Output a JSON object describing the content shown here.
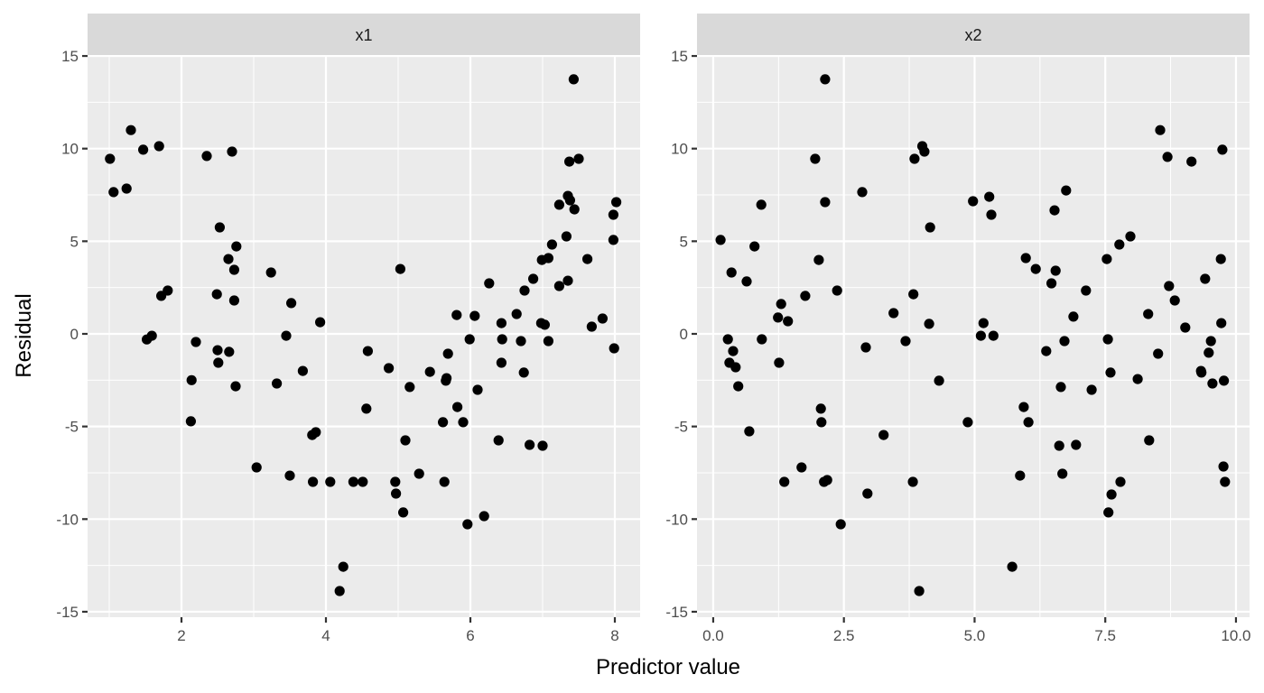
{
  "chart_data": {
    "type": "scatter",
    "title": "",
    "xlabel": "Predictor value",
    "ylabel": "Residual",
    "facets": [
      {
        "name": "x1",
        "xlim": [
          0.7,
          8.35
        ],
        "ylim": [
          -15.4,
          15.0
        ],
        "x_ticks": [
          2,
          4,
          6,
          8
        ],
        "x_tick_labels": [
          "2",
          "4",
          "6",
          "8"
        ],
        "x_minor": [
          1,
          3,
          5,
          7
        ],
        "y_ticks": [
          15,
          10,
          5,
          0,
          -5,
          -10,
          -15
        ],
        "y_tick_labels": [
          "15",
          "10",
          "5",
          "0",
          "-5",
          "-10",
          "-15"
        ],
        "points": [
          [
            1.01,
            9.45
          ],
          [
            1.06,
            7.65
          ],
          [
            1.24,
            7.84
          ],
          [
            1.3,
            11.0
          ],
          [
            1.47,
            9.94
          ],
          [
            1.69,
            10.13
          ],
          [
            1.52,
            -0.3
          ],
          [
            1.59,
            -0.1
          ],
          [
            1.72,
            2.05
          ],
          [
            1.81,
            2.34
          ],
          [
            2.14,
            -2.5
          ],
          [
            2.13,
            -4.72
          ],
          [
            2.2,
            -0.44
          ],
          [
            2.35,
            9.6
          ],
          [
            2.53,
            5.75
          ],
          [
            2.5,
            -0.88
          ],
          [
            2.51,
            -1.56
          ],
          [
            2.66,
            -0.97
          ],
          [
            2.65,
            4.04
          ],
          [
            2.7,
            9.84
          ],
          [
            2.73,
            3.46
          ],
          [
            2.73,
            1.8
          ],
          [
            2.75,
            -2.83
          ],
          [
            2.76,
            4.72
          ],
          [
            2.49,
            2.14
          ],
          [
            3.04,
            -7.21
          ],
          [
            3.24,
            3.31
          ],
          [
            3.32,
            -2.68
          ],
          [
            3.45,
            -0.1
          ],
          [
            3.52,
            1.66
          ],
          [
            3.5,
            -7.65
          ],
          [
            3.68,
            -2.0
          ],
          [
            3.82,
            -7.99
          ],
          [
            3.81,
            -5.46
          ],
          [
            3.86,
            -5.31
          ],
          [
            3.92,
            0.63
          ],
          [
            4.06,
            -7.99
          ],
          [
            4.19,
            -13.88
          ],
          [
            4.24,
            -12.57
          ],
          [
            4.38,
            -7.99
          ],
          [
            4.51,
            -7.99
          ],
          [
            4.56,
            -4.04
          ],
          [
            4.58,
            -0.93
          ],
          [
            4.87,
            -1.85
          ],
          [
            4.96,
            -7.99
          ],
          [
            4.97,
            -8.62
          ],
          [
            5.03,
            3.5
          ],
          [
            5.07,
            -9.64
          ],
          [
            5.1,
            -5.75
          ],
          [
            5.16,
            -2.87
          ],
          [
            5.29,
            -7.55
          ],
          [
            5.44,
            -2.05
          ],
          [
            5.62,
            -4.77
          ],
          [
            5.64,
            -7.99
          ],
          [
            5.66,
            -2.53
          ],
          [
            5.67,
            -2.39
          ],
          [
            5.69,
            -1.07
          ],
          [
            5.81,
            1.02
          ],
          [
            5.82,
            -3.95
          ],
          [
            5.9,
            -4.77
          ],
          [
            5.96,
            -10.28
          ],
          [
            5.99,
            -0.29
          ],
          [
            6.06,
            0.97
          ],
          [
            6.1,
            -3.02
          ],
          [
            6.19,
            -9.84
          ],
          [
            6.26,
            2.73
          ],
          [
            6.39,
            -5.75
          ],
          [
            6.43,
            -1.56
          ],
          [
            6.43,
            0.58
          ],
          [
            6.44,
            -0.29
          ],
          [
            6.64,
            1.07
          ],
          [
            6.7,
            -0.39
          ],
          [
            6.74,
            -2.09
          ],
          [
            6.75,
            2.34
          ],
          [
            6.82,
            -5.99
          ],
          [
            6.87,
            2.97
          ],
          [
            6.98,
            0.58
          ],
          [
            6.99,
            3.99
          ],
          [
            7.0,
            -6.04
          ],
          [
            7.03,
            0.49
          ],
          [
            7.08,
            -0.39
          ],
          [
            7.08,
            4.09
          ],
          [
            7.13,
            4.82
          ],
          [
            7.23,
            2.58
          ],
          [
            7.23,
            6.97
          ],
          [
            7.33,
            5.26
          ],
          [
            7.35,
            2.87
          ],
          [
            7.35,
            7.45
          ],
          [
            7.37,
            9.3
          ],
          [
            7.38,
            7.21
          ],
          [
            7.43,
            13.74
          ],
          [
            7.44,
            6.72
          ],
          [
            7.5,
            9.45
          ],
          [
            7.62,
            4.04
          ],
          [
            7.68,
            0.39
          ],
          [
            7.83,
            0.83
          ],
          [
            7.98,
            6.43
          ],
          [
            7.98,
            5.07
          ],
          [
            7.99,
            -0.78
          ],
          [
            8.02,
            7.11
          ]
        ]
      },
      {
        "name": "x2",
        "xlim": [
          -0.31,
          10.26
        ],
        "ylim": [
          -15.4,
          15.0
        ],
        "x_ticks": [
          0.0,
          2.5,
          5.0,
          7.5,
          10.0
        ],
        "x_tick_labels": [
          "0.0",
          "2.5",
          "5.0",
          "7.5",
          "10.0"
        ],
        "x_minor": [
          1.25,
          3.75,
          6.25,
          8.75
        ],
        "y_ticks": [
          15,
          10,
          5,
          0,
          -5,
          -10,
          -15
        ],
        "y_tick_labels": [
          "15",
          "10",
          "5",
          "0",
          "-5",
          "-10",
          "-15"
        ],
        "points": [
          [
            0.14,
            5.07
          ],
          [
            0.28,
            -0.29
          ],
          [
            0.31,
            -1.56
          ],
          [
            0.35,
            3.31
          ],
          [
            0.38,
            -0.93
          ],
          [
            0.43,
            -1.8
          ],
          [
            0.48,
            -2.83
          ],
          [
            0.64,
            2.83
          ],
          [
            0.69,
            -5.26
          ],
          [
            0.79,
            4.72
          ],
          [
            0.92,
            6.97
          ],
          [
            0.93,
            -0.29
          ],
          [
            1.24,
            0.88
          ],
          [
            1.26,
            -1.56
          ],
          [
            1.3,
            1.61
          ],
          [
            1.36,
            -7.99
          ],
          [
            1.43,
            0.68
          ],
          [
            1.69,
            -7.21
          ],
          [
            1.76,
            2.05
          ],
          [
            1.95,
            9.45
          ],
          [
            2.02,
            3.99
          ],
          [
            2.06,
            -4.04
          ],
          [
            2.07,
            -4.77
          ],
          [
            2.12,
            -7.99
          ],
          [
            2.14,
            7.11
          ],
          [
            2.14,
            13.74
          ],
          [
            2.18,
            -7.89
          ],
          [
            2.37,
            2.34
          ],
          [
            2.44,
            -10.28
          ],
          [
            2.85,
            7.65
          ],
          [
            2.92,
            -0.73
          ],
          [
            2.95,
            -8.62
          ],
          [
            3.26,
            -5.46
          ],
          [
            3.45,
            1.12
          ],
          [
            3.68,
            -0.39
          ],
          [
            3.82,
            -7.99
          ],
          [
            3.83,
            2.14
          ],
          [
            3.85,
            9.45
          ],
          [
            3.94,
            -13.88
          ],
          [
            4.0,
            10.13
          ],
          [
            4.04,
            9.84
          ],
          [
            4.13,
            0.54
          ],
          [
            4.15,
            5.75
          ],
          [
            4.32,
            -2.53
          ],
          [
            4.87,
            -4.77
          ],
          [
            4.97,
            7.16
          ],
          [
            5.12,
            -0.1
          ],
          [
            5.17,
            0.58
          ],
          [
            5.28,
            7.4
          ],
          [
            5.32,
            6.43
          ],
          [
            5.36,
            -0.1
          ],
          [
            5.72,
            -12.57
          ],
          [
            5.87,
            -7.65
          ],
          [
            5.94,
            -3.95
          ],
          [
            5.98,
            4.09
          ],
          [
            6.03,
            -4.77
          ],
          [
            6.17,
            3.5
          ],
          [
            6.37,
            -0.93
          ],
          [
            6.47,
            2.73
          ],
          [
            6.53,
            6.67
          ],
          [
            6.55,
            3.41
          ],
          [
            6.62,
            -6.04
          ],
          [
            6.65,
            -2.87
          ],
          [
            6.68,
            -7.55
          ],
          [
            6.72,
            -0.39
          ],
          [
            6.75,
            7.74
          ],
          [
            6.89,
            0.93
          ],
          [
            6.94,
            -5.99
          ],
          [
            7.13,
            2.34
          ],
          [
            7.24,
            -3.02
          ],
          [
            7.53,
            4.04
          ],
          [
            7.55,
            -0.29
          ],
          [
            7.56,
            -9.64
          ],
          [
            7.6,
            -2.09
          ],
          [
            7.62,
            -8.67
          ],
          [
            7.77,
            4.82
          ],
          [
            7.79,
            -7.99
          ],
          [
            7.98,
            5.26
          ],
          [
            8.12,
            -2.44
          ],
          [
            8.32,
            1.07
          ],
          [
            8.34,
            -5.75
          ],
          [
            8.51,
            -1.07
          ],
          [
            8.55,
            11.0
          ],
          [
            8.69,
            9.55
          ],
          [
            8.72,
            2.58
          ],
          [
            8.83,
            1.8
          ],
          [
            9.03,
            0.34
          ],
          [
            9.15,
            9.3
          ],
          [
            9.33,
            -2.0
          ],
          [
            9.41,
            2.97
          ],
          [
            9.48,
            -1.02
          ],
          [
            9.52,
            -0.39
          ],
          [
            9.55,
            -2.68
          ],
          [
            9.71,
            4.04
          ],
          [
            9.72,
            0.58
          ],
          [
            9.74,
            9.94
          ],
          [
            9.76,
            -7.16
          ],
          [
            9.77,
            -2.53
          ],
          [
            9.79,
            -7.99
          ],
          [
            9.34,
            -2.09
          ]
        ]
      }
    ],
    "grid": true,
    "legend": null
  },
  "colors": {
    "panel_bg": "#ebebeb",
    "strip_bg": "#d9d9d9",
    "grid": "#ffffff",
    "point": "#000000",
    "tick": "#333333"
  }
}
